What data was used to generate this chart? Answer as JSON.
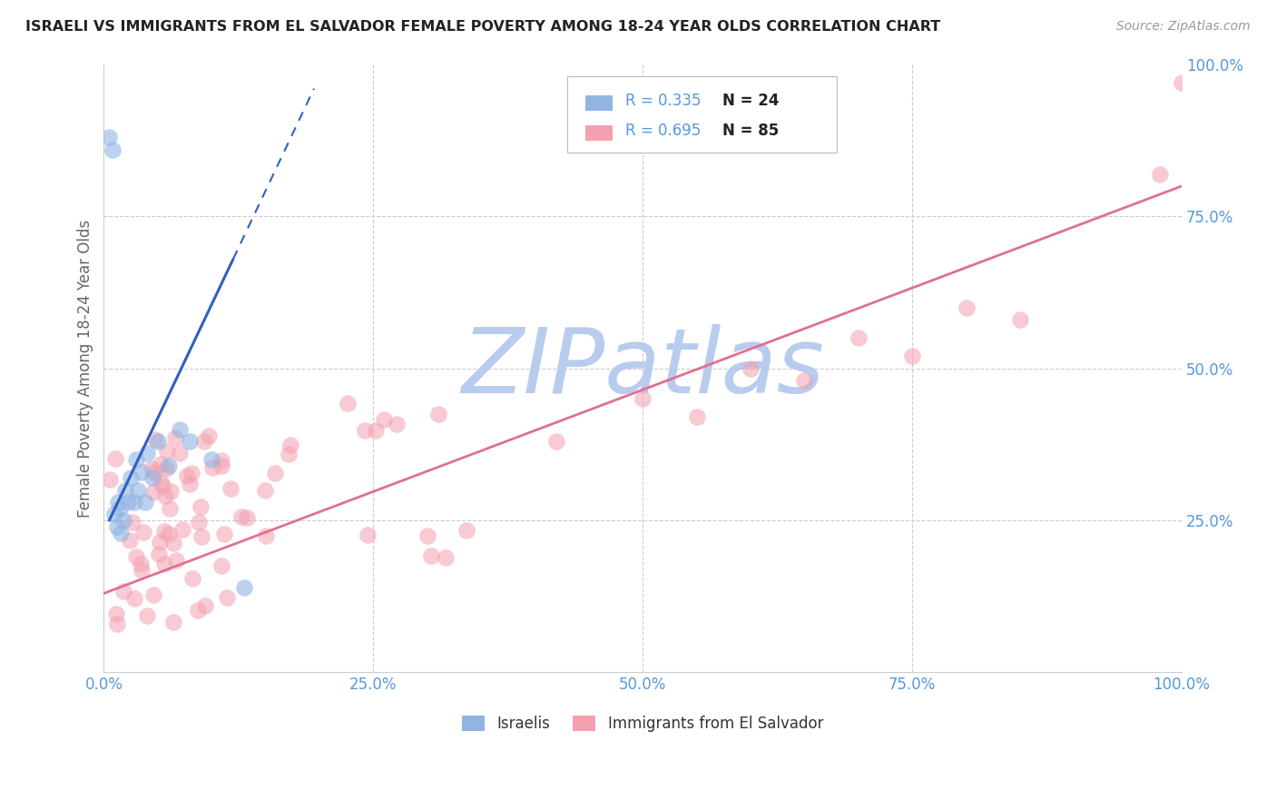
{
  "title": "ISRAELI VS IMMIGRANTS FROM EL SALVADOR FEMALE POVERTY AMONG 18-24 YEAR OLDS CORRELATION CHART",
  "source": "Source: ZipAtlas.com",
  "ylabel": "Female Poverty Among 18-24 Year Olds",
  "watermark": "ZIPatlas",
  "legend_r1": "R = 0.335",
  "legend_n1": "N = 24",
  "legend_r2": "R = 0.695",
  "legend_n2": "N = 85",
  "group1_color": "#92b4e3",
  "group2_color": "#f4a0b0",
  "line1_color": "#3060c0",
  "line2_color": "#e07090",
  "xlim": [
    0,
    1
  ],
  "ylim": [
    0,
    1
  ],
  "xticks": [
    0.0,
    0.25,
    0.5,
    0.75,
    1.0
  ],
  "yticks": [
    0.0,
    0.25,
    0.5,
    0.75,
    1.0
  ],
  "xticklabels": [
    "0.0%",
    "25.0%",
    "50.0%",
    "75.0%",
    "100.0%"
  ],
  "yticklabels": [
    "",
    "25.0%",
    "50.0%",
    "75.0%",
    "100.0%"
  ],
  "background_color": "#ffffff",
  "grid_color": "#cccccc",
  "title_color": "#222222",
  "tick_color": "#5599dd",
  "watermark_color": "#b8ccee",
  "label1": "Israelis",
  "label2": "Immigrants from El Salvador"
}
